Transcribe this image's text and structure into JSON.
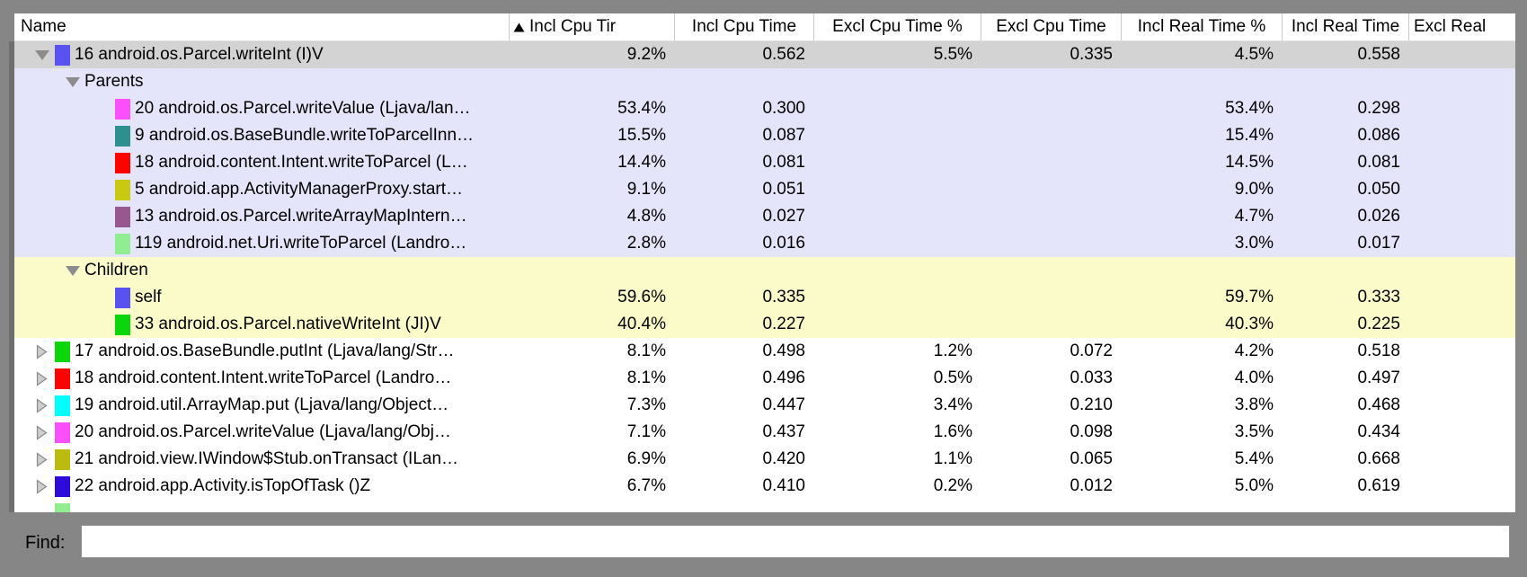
{
  "table": {
    "columns": [
      {
        "label": "Name",
        "sorted": false
      },
      {
        "label": "Incl Cpu Tir",
        "sorted": true,
        "sort_direction": "ascending"
      },
      {
        "label": "Incl Cpu Time",
        "sorted": false
      },
      {
        "label": "Excl Cpu Time %",
        "sorted": false
      },
      {
        "label": "Excl Cpu Time",
        "sorted": false
      },
      {
        "label": "Incl Real Time %",
        "sorted": false
      },
      {
        "label": "Incl Real Time",
        "sorted": false
      },
      {
        "label": "Excl Real",
        "sorted": false
      }
    ],
    "colors": {
      "selected_row_bg": "#d3d3d3",
      "parents_section_bg": "#e4e4fa",
      "children_section_bg": "#fbfbca",
      "plain_row_bg": "#ffffff",
      "triangle_expanded": "#8c8c8c",
      "triangle_collapsed_fill": "#cdcdcd",
      "triangle_collapsed_stroke": "#8a8a8a"
    },
    "rows": [
      {
        "kind": "node",
        "expanded": true,
        "bg": "selected",
        "swatch": "#5a52f0",
        "name": "16 android.os.Parcel.writeInt (I)V",
        "values": [
          "9.2%",
          "0.562",
          "5.5%",
          "0.335",
          "4.5%",
          "0.558"
        ]
      },
      {
        "kind": "section",
        "bg": "parents",
        "name": "Parents",
        "values": [
          "",
          "",
          "",
          "",
          "",
          ""
        ]
      },
      {
        "kind": "sub",
        "bg": "parents",
        "swatch": "#fb4ffb",
        "name": "20 android.os.Parcel.writeValue (Ljava/lan…",
        "values": [
          "53.4%",
          "0.300",
          "",
          "",
          "53.4%",
          "0.298"
        ]
      },
      {
        "kind": "sub",
        "bg": "parents",
        "swatch": "#2e8f8f",
        "name": "9 android.os.BaseBundle.writeToParcelInn…",
        "values": [
          "15.5%",
          "0.087",
          "",
          "",
          "15.4%",
          "0.086"
        ]
      },
      {
        "kind": "sub",
        "bg": "parents",
        "swatch": "#fb0400",
        "name": "18 android.content.Intent.writeToParcel (L…",
        "values": [
          "14.4%",
          "0.081",
          "",
          "",
          "14.5%",
          "0.081"
        ]
      },
      {
        "kind": "sub",
        "bg": "parents",
        "swatch": "#c9c912",
        "name": "5 android.app.ActivityManagerProxy.start…",
        "values": [
          "9.1%",
          "0.051",
          "",
          "",
          "9.0%",
          "0.050"
        ]
      },
      {
        "kind": "sub",
        "bg": "parents",
        "swatch": "#96588f",
        "name": "13 android.os.Parcel.writeArrayMapIntern…",
        "values": [
          "4.8%",
          "0.027",
          "",
          "",
          "4.7%",
          "0.026"
        ]
      },
      {
        "kind": "sub",
        "bg": "parents",
        "swatch": "#90ee90",
        "name": "119 android.net.Uri.writeToParcel (Landro…",
        "values": [
          "2.8%",
          "0.016",
          "",
          "",
          "3.0%",
          "0.017"
        ]
      },
      {
        "kind": "section",
        "bg": "children",
        "name": "Children",
        "values": [
          "",
          "",
          "",
          "",
          "",
          ""
        ]
      },
      {
        "kind": "sub",
        "bg": "children",
        "swatch": "#5a52f0",
        "name": "self",
        "values": [
          "59.6%",
          "0.335",
          "",
          "",
          "59.7%",
          "0.333"
        ]
      },
      {
        "kind": "sub",
        "bg": "children",
        "swatch": "#0bd60b",
        "name": "33 android.os.Parcel.nativeWriteInt (JI)V",
        "values": [
          "40.4%",
          "0.227",
          "",
          "",
          "40.3%",
          "0.225"
        ]
      },
      {
        "kind": "node",
        "expanded": false,
        "bg": "plain",
        "swatch": "#0bd60b",
        "name": "17 android.os.BaseBundle.putInt (Ljava/lang/Str…",
        "values": [
          "8.1%",
          "0.498",
          "1.2%",
          "0.072",
          "4.2%",
          "0.518"
        ]
      },
      {
        "kind": "node",
        "expanded": false,
        "bg": "plain",
        "swatch": "#fb0400",
        "name": "18 android.content.Intent.writeToParcel (Landro…",
        "values": [
          "8.1%",
          "0.496",
          "0.5%",
          "0.033",
          "4.0%",
          "0.497"
        ]
      },
      {
        "kind": "node",
        "expanded": false,
        "bg": "plain",
        "swatch": "#00ffff",
        "name": "19 android.util.ArrayMap.put (Ljava/lang/Object…",
        "values": [
          "7.3%",
          "0.447",
          "3.4%",
          "0.210",
          "3.8%",
          "0.468"
        ]
      },
      {
        "kind": "node",
        "expanded": false,
        "bg": "plain",
        "swatch": "#fb4ffb",
        "name": "20 android.os.Parcel.writeValue (Ljava/lang/Obj…",
        "values": [
          "7.1%",
          "0.437",
          "1.6%",
          "0.098",
          "3.5%",
          "0.434"
        ]
      },
      {
        "kind": "node",
        "expanded": false,
        "bg": "plain",
        "swatch": "#bcbc10",
        "name": "21 android.view.IWindow$Stub.onTransact (ILan…",
        "values": [
          "6.9%",
          "0.420",
          "1.1%",
          "0.065",
          "5.4%",
          "0.668"
        ]
      },
      {
        "kind": "node",
        "expanded": false,
        "bg": "plain",
        "swatch": "#2e0bd8",
        "name": "22 android.app.Activity.isTopOfTask ()Z",
        "values": [
          "6.7%",
          "0.410",
          "0.2%",
          "0.012",
          "5.0%",
          "0.619"
        ]
      },
      {
        "kind": "partial",
        "bg": "plain",
        "swatch": "#90ee90",
        "name": "",
        "values": [
          "",
          "",
          "",
          "",
          "",
          ""
        ]
      }
    ]
  },
  "find": {
    "label": "Find:",
    "value": ""
  }
}
